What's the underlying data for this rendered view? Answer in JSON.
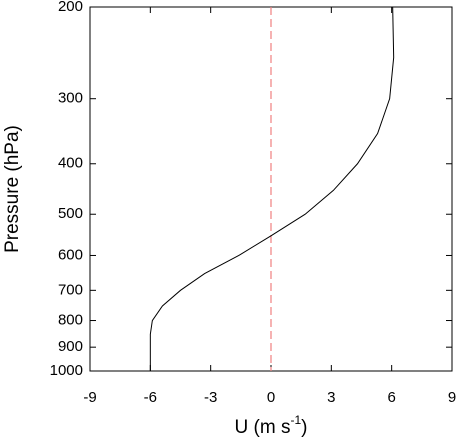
{
  "chart_data": {
    "type": "line",
    "xlabel_parts": [
      "U (m s",
      "-1",
      ")"
    ],
    "ylabel": "Pressure (hPa)",
    "values": [
      6.05,
      6.1,
      5.9,
      5.3,
      4.3,
      3.1,
      1.7,
      0.0,
      -1.6,
      -3.3,
      -4.5,
      -5.4,
      -5.9,
      -6.0,
      -6.0,
      -6.0
    ],
    "levels": [
      200,
      250,
      300,
      350,
      400,
      450,
      500,
      550,
      600,
      650,
      700,
      750,
      800,
      850,
      900,
      1000
    ],
    "color": "#000000",
    "xlim": [
      -9,
      9
    ],
    "xticks": [
      -9,
      -6,
      -3,
      0,
      3,
      6,
      9
    ],
    "ylim": [
      1000,
      200
    ],
    "yticks": [
      200,
      300,
      400,
      500,
      600,
      700,
      800,
      900,
      1000
    ],
    "ylog": true,
    "vline": {
      "x": 0,
      "color": "#f08080",
      "dashed": true
    }
  }
}
